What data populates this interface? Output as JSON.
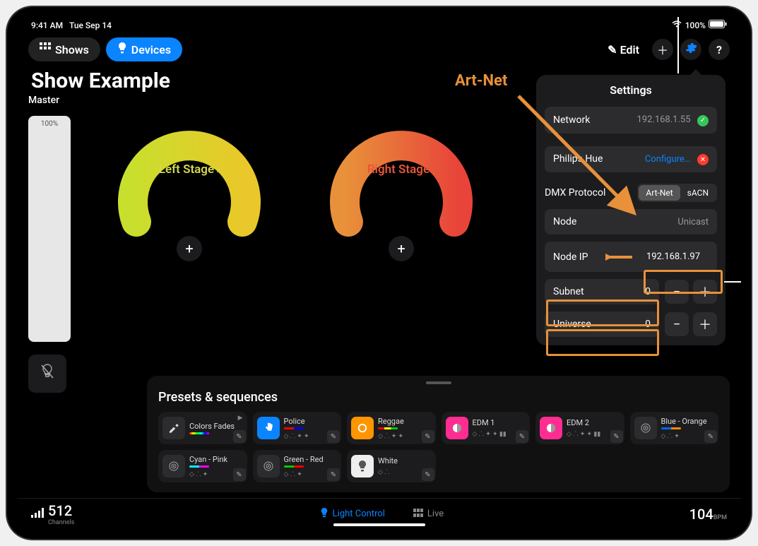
{
  "status": {
    "time": "9:41 AM",
    "date": "Tue Sep 14",
    "battery": "100%"
  },
  "nav": {
    "shows": "Shows",
    "devices": "Devices",
    "edit": "Edit"
  },
  "page_title": "Show Example",
  "master": {
    "label": "Master",
    "percent": "100%"
  },
  "stages": [
    {
      "name": "Left Stage",
      "color": "#d4d94f",
      "gauge_start": "#c9df2d",
      "gauge_end": "#eac72a"
    },
    {
      "name": "Right Stage",
      "color": "#e8553a",
      "gauge_start": "#e8913a",
      "gauge_end": "#e8443a"
    }
  ],
  "presets": {
    "title": "Presets & sequences",
    "items": [
      {
        "name": "Colors Fades",
        "icon_bg": "#2c2c2e",
        "icon": "brush",
        "colorbar": "linear-gradient(90deg,#f00,#ff0,#0f0,#0ff,#00f,#f0f)",
        "meta": ""
      },
      {
        "name": "Police",
        "icon_bg": "#0a84ff",
        "icon": "hand",
        "colorbar": "linear-gradient(90deg,#f00 50%,#00f 50%)",
        "meta": "◇ ⸫ ✦ ✦"
      },
      {
        "name": "Reggae",
        "icon_bg": "#ff9500",
        "icon": "circle",
        "colorbar": "linear-gradient(90deg,#f00 33%,#ff0 33% 66%,#0c0 66%)",
        "meta": "◇ ⸫ ✦ ✦"
      },
      {
        "name": "EDM 1",
        "icon_bg": "#ff2d92",
        "icon": "half",
        "colorbar": "",
        "meta": "◇ ⸫ ✦ ✦ ▮▮"
      },
      {
        "name": "EDM 2",
        "icon_bg": "#ff2d92",
        "icon": "half",
        "colorbar": "",
        "meta": "◇ ⸫ ✦ ✦ ▮▮"
      },
      {
        "name": "Blue - Orange",
        "icon_bg": "#2c2c2e",
        "icon": "target",
        "colorbar": "linear-gradient(90deg,#06f 50%,#f80 50%)",
        "meta": "◇ ⸫ ✦"
      },
      {
        "name": "Cyan - Pink",
        "icon_bg": "#2c2c2e",
        "icon": "target",
        "colorbar": "linear-gradient(90deg,#0ff 50%,#f0f 50%)",
        "meta": "◇ ⸫ ✦"
      },
      {
        "name": "Green - Red",
        "icon_bg": "#2c2c2e",
        "icon": "target",
        "colorbar": "linear-gradient(90deg,#0c0 50%,#f00 50%)",
        "meta": "◇ ⸫ ✦"
      },
      {
        "name": "White",
        "icon_bg": "#eee",
        "icon": "bulb",
        "colorbar": "",
        "meta": "◇ ⸫"
      }
    ]
  },
  "bottom": {
    "channels": "512",
    "channels_label": "Channels",
    "tab_light": "Light Control",
    "tab_live": "Live",
    "bpm": "104",
    "bpm_unit": "BPM"
  },
  "settings": {
    "title": "Settings",
    "network_label": "Network",
    "network_ip": "192.168.1.55",
    "hue_label": "Philips Hue",
    "hue_action": "Configure…",
    "dmx_label": "DMX Protocol",
    "dmx_opts": [
      "Art-Net",
      "sACN"
    ],
    "node_label": "Node",
    "node_value": "Unicast",
    "nodeip_label": "Node IP",
    "nodeip_value": "192.168.1.97",
    "subnet_label": "Subnet",
    "subnet_value": "0",
    "universe_label": "Universe",
    "universe_value": "0"
  },
  "annotations": {
    "artnet_label": "Art-Net"
  },
  "colors": {
    "accent": "#0a84ff",
    "highlight": "#e8913a",
    "ok_green": "#34c759",
    "err_red": "#ff3b30"
  }
}
